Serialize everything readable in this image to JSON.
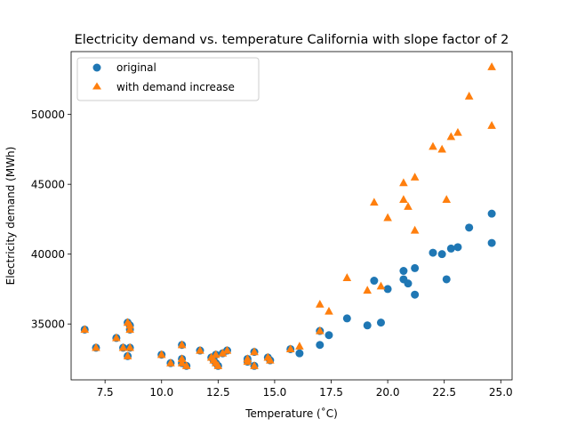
{
  "chart_data": {
    "type": "scatter",
    "title": "Electricity demand vs. temperature California with slope factor of 2",
    "xlabel": "Temperature (˚C)",
    "ylabel": "Electricity demand (MWh)",
    "xlim": [
      6.0,
      25.5
    ],
    "ylim": [
      31000,
      54500
    ],
    "xticks": [
      7.5,
      10.0,
      12.5,
      15.0,
      17.5,
      20.0,
      22.5,
      25.0
    ],
    "xtick_labels": [
      "7.5",
      "10.0",
      "12.5",
      "15.0",
      "17.5",
      "20.0",
      "22.5",
      "25.0"
    ],
    "yticks": [
      35000,
      40000,
      45000,
      50000
    ],
    "ytick_labels": [
      "35000",
      "40000",
      "45000",
      "50000"
    ],
    "grid": false,
    "legend_position": "top-left",
    "series": [
      {
        "name": "original",
        "marker": "circle",
        "color": "#1f77b4",
        "points": [
          [
            6.6,
            34600
          ],
          [
            7.1,
            33300
          ],
          [
            8.0,
            34000
          ],
          [
            8.3,
            33300
          ],
          [
            8.5,
            35100
          ],
          [
            8.6,
            34900
          ],
          [
            8.6,
            34600
          ],
          [
            8.5,
            32700
          ],
          [
            8.6,
            33300
          ],
          [
            10.0,
            32800
          ],
          [
            10.4,
            32200
          ],
          [
            10.9,
            33500
          ],
          [
            10.9,
            32500
          ],
          [
            10.9,
            32200
          ],
          [
            11.1,
            32000
          ],
          [
            11.7,
            33100
          ],
          [
            12.2,
            32600
          ],
          [
            12.3,
            32400
          ],
          [
            12.4,
            32800
          ],
          [
            12.4,
            32200
          ],
          [
            12.5,
            32000
          ],
          [
            12.7,
            32900
          ],
          [
            12.9,
            33100
          ],
          [
            13.8,
            32500
          ],
          [
            13.8,
            32300
          ],
          [
            14.1,
            33000
          ],
          [
            14.1,
            32000
          ],
          [
            14.7,
            32600
          ],
          [
            14.8,
            32400
          ],
          [
            15.7,
            33200
          ],
          [
            16.1,
            32900
          ],
          [
            17.0,
            34500
          ],
          [
            17.0,
            33500
          ],
          [
            17.4,
            34200
          ],
          [
            18.2,
            35400
          ],
          [
            19.1,
            34900
          ],
          [
            19.4,
            38100
          ],
          [
            19.7,
            35100
          ],
          [
            20.0,
            37500
          ],
          [
            20.7,
            38800
          ],
          [
            20.7,
            38200
          ],
          [
            20.9,
            37900
          ],
          [
            21.2,
            39000
          ],
          [
            21.2,
            37100
          ],
          [
            22.0,
            40100
          ],
          [
            22.4,
            40000
          ],
          [
            22.6,
            38200
          ],
          [
            22.8,
            40400
          ],
          [
            23.1,
            40500
          ],
          [
            23.6,
            41900
          ],
          [
            24.6,
            42900
          ],
          [
            24.6,
            40800
          ]
        ]
      },
      {
        "name": "with demand increase",
        "marker": "triangle",
        "color": "#ff7f0e",
        "points": [
          [
            6.6,
            34600
          ],
          [
            7.1,
            33300
          ],
          [
            8.0,
            34000
          ],
          [
            8.3,
            33300
          ],
          [
            8.5,
            35100
          ],
          [
            8.6,
            34900
          ],
          [
            8.6,
            34600
          ],
          [
            8.5,
            32700
          ],
          [
            8.6,
            33300
          ],
          [
            10.0,
            32800
          ],
          [
            10.4,
            32200
          ],
          [
            10.9,
            33500
          ],
          [
            10.9,
            32500
          ],
          [
            10.9,
            32200
          ],
          [
            11.1,
            32000
          ],
          [
            11.7,
            33100
          ],
          [
            12.2,
            32600
          ],
          [
            12.3,
            32400
          ],
          [
            12.4,
            32800
          ],
          [
            12.4,
            32200
          ],
          [
            12.5,
            32000
          ],
          [
            12.7,
            32900
          ],
          [
            12.9,
            33100
          ],
          [
            13.8,
            32500
          ],
          [
            13.8,
            32300
          ],
          [
            14.1,
            33000
          ],
          [
            14.1,
            32000
          ],
          [
            14.7,
            32600
          ],
          [
            14.8,
            32400
          ],
          [
            15.7,
            33200
          ],
          [
            16.1,
            33400
          ],
          [
            17.0,
            36400
          ],
          [
            17.0,
            34500
          ],
          [
            17.4,
            35900
          ],
          [
            18.2,
            38300
          ],
          [
            19.1,
            37400
          ],
          [
            19.4,
            43700
          ],
          [
            19.7,
            37700
          ],
          [
            20.0,
            42600
          ],
          [
            20.7,
            45100
          ],
          [
            20.7,
            43900
          ],
          [
            20.9,
            43400
          ],
          [
            21.2,
            45500
          ],
          [
            21.2,
            41700
          ],
          [
            22.0,
            47700
          ],
          [
            22.4,
            47500
          ],
          [
            22.6,
            43900
          ],
          [
            22.8,
            48400
          ],
          [
            23.1,
            48700
          ],
          [
            23.6,
            51300
          ],
          [
            24.6,
            53400
          ],
          [
            24.6,
            49200
          ]
        ]
      }
    ]
  }
}
